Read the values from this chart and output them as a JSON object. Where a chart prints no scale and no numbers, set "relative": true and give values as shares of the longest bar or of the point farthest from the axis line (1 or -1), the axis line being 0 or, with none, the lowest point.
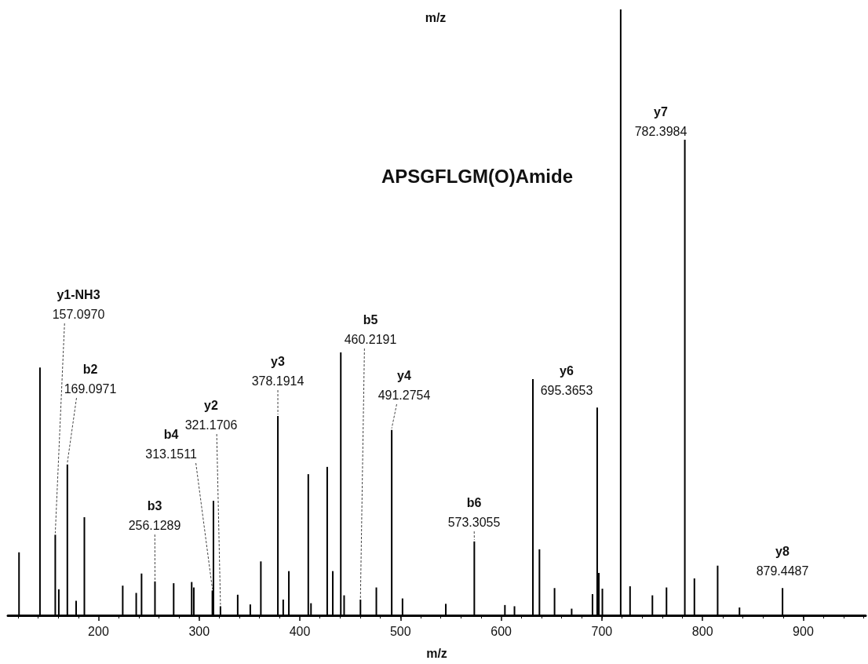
{
  "chart_data": {
    "type": "bar",
    "title": "APSGFLGM(O)Amide",
    "xlabel": "m/z",
    "relative": true,
    "color": "#000000",
    "x": [
      121.1,
      141.9,
      157.097,
      160.6,
      169.0971,
      177.8,
      186,
      224.1,
      237.5,
      242.8,
      256.1289,
      274.7,
      292.6,
      294.7,
      313.1511,
      314.2,
      321.1706,
      338.3,
      350.8,
      361.3,
      378.1914,
      383.5,
      389.1,
      408.4,
      411.1,
      427.2,
      432.7,
      440.7,
      444,
      460.2191,
      476,
      491.2754,
      502,
      545,
      573.3055,
      603.7,
      613.2,
      631.5,
      638,
      653,
      670,
      690.7,
      695.3653,
      697,
      700.5,
      718.7,
      728,
      750.2,
      764.2,
      782.3984,
      791.9,
      815,
      836.7,
      879.4487
    ],
    "values": [
      0.104,
      0.409,
      0.133,
      0.043,
      0.249,
      0.024,
      0.162,
      0.049,
      0.037,
      0.069,
      0.056,
      0.053,
      0.055,
      0.046,
      0.041,
      0.189,
      0.015,
      0.034,
      0.018,
      0.089,
      0.329,
      0.026,
      0.073,
      0.233,
      0.02,
      0.245,
      0.073,
      0.434,
      0.033,
      0.026,
      0.046,
      0.306,
      0.028,
      0.019,
      0.122,
      0.017,
      0.015,
      0.39,
      0.109,
      0.045,
      0.011,
      0.035,
      0.343,
      0.07,
      0.044,
      1,
      0.048,
      0.033,
      0.046,
      0.785,
      0.061,
      0.082,
      0.013,
      0.045
    ],
    "xlim": [
      110,
      962
    ],
    "xticks": [
      200,
      300,
      400,
      500,
      600,
      700,
      800,
      900
    ],
    "annotations": [
      {
        "text": "y1-NH3\n157.0970",
        "x": 157.097,
        "y": 0.133
      },
      {
        "text": "b2\n169.0971",
        "x": 169.0971,
        "y": 0.249
      },
      {
        "text": "b3\n256.1289",
        "x": 256.1289,
        "y": 0.056
      },
      {
        "text": "b4\n313.1511",
        "x": 313.1511,
        "y": 0.041
      },
      {
        "text": "y2\n321.1706",
        "x": 321.1706,
        "y": 0.015
      },
      {
        "text": "y3\n378.1914",
        "x": 378.1914,
        "y": 0.329
      },
      {
        "text": "b5\n460.2191",
        "x": 460.2191,
        "y": 0.026
      },
      {
        "text": "y4\n491.2754",
        "x": 491.2754,
        "y": 0.306
      },
      {
        "text": "b6\n573.3055",
        "x": 573.3055,
        "y": 0.122
      },
      {
        "text": "y6\n695.3653",
        "x": 695.3653,
        "y": 0.343
      },
      {
        "text": "y7\n782.3984",
        "x": 782.3984,
        "y": 0.785
      },
      {
        "text": "y8\n879.4487",
        "x": 879.4487,
        "y": 0.045
      },
      "m/z"
    ],
    "grid": false
  }
}
